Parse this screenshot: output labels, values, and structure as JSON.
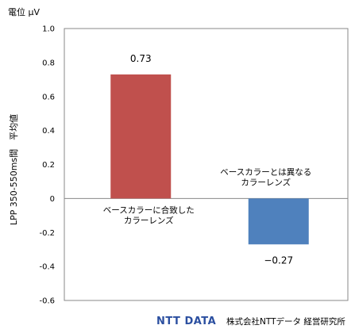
{
  "chart_data": {
    "type": "bar",
    "unit_label": "電位 μV",
    "ylabel": "LPP 350-550ms間　平均値",
    "ylim": [
      -0.6,
      1.0
    ],
    "yticks": [
      "1.0",
      "0.8",
      "0.6",
      "0.4",
      "0.2",
      "0",
      "-0.2",
      "-0.4",
      "-0.6"
    ],
    "grid": false,
    "categories": [
      [
        "ベースカラーに合致した",
        "カラーレンズ"
      ],
      [
        "ベースカラーとは異なる",
        "カラーレンズ"
      ]
    ],
    "values": [
      0.73,
      -0.27
    ],
    "value_labels": [
      "0.73",
      "−0.27"
    ],
    "colors": [
      "#c0504d",
      "#4f81bd"
    ]
  },
  "footer": {
    "logo": "NTT DATA",
    "credit": "株式会社NTTデータ 経営研究所"
  }
}
